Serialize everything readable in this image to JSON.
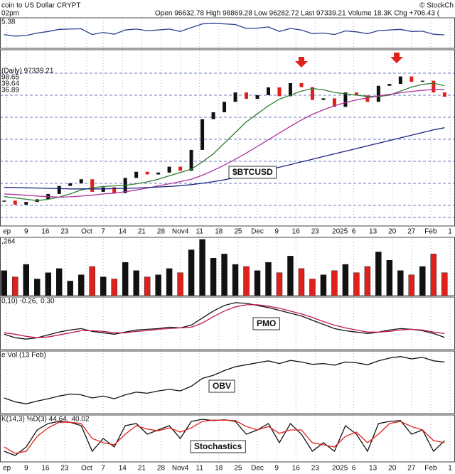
{
  "chart_data": {
    "type": "stock",
    "title": "coin to US Dollar CRYPT",
    "subtitle": "02pm",
    "quote": "Open 96632.78 High 98869.28 Low 96282.72 Last 97339.21 Volume 18.3K Chg +706.43 (",
    "credit": "© StockCh",
    "x": [
      0,
      4,
      8,
      12,
      16,
      20,
      24,
      28,
      32,
      36,
      40,
      44,
      48,
      52,
      56,
      60,
      64,
      68,
      72,
      76,
      80,
      84,
      88,
      92,
      96,
      100,
      104,
      108,
      112,
      116,
      120,
      124,
      128,
      132,
      136,
      140,
      144,
      148,
      152,
      156,
      160
    ],
    "xlim": [
      -1.5,
      163.8
    ],
    "xticks": [
      {
        "value": 1,
        "label": "ep"
      },
      {
        "value": 8,
        "label": "9"
      },
      {
        "value": 15,
        "label": "16"
      },
      {
        "value": 22,
        "label": "23"
      },
      {
        "value": 30,
        "label": "Oct"
      },
      {
        "value": 36,
        "label": "7"
      },
      {
        "value": 43,
        "label": "14"
      },
      {
        "value": 50,
        "label": "21"
      },
      {
        "value": 57,
        "label": "28"
      },
      {
        "value": 64,
        "label": "Nov4"
      },
      {
        "value": 71,
        "label": "11"
      },
      {
        "value": 78,
        "label": "18"
      },
      {
        "value": 85,
        "label": "25"
      },
      {
        "value": 92,
        "label": "Dec"
      },
      {
        "value": 99,
        "label": "9"
      },
      {
        "value": 106,
        "label": "16"
      },
      {
        "value": 113,
        "label": "23"
      },
      {
        "value": 122,
        "label": "2025"
      },
      {
        "value": 127,
        "label": "6"
      },
      {
        "value": 134,
        "label": "13"
      },
      {
        "value": 141,
        "label": "20"
      },
      {
        "value": 148,
        "label": "27"
      },
      {
        "value": 155,
        "label": "Feb"
      },
      {
        "value": 162,
        "label": "1"
      }
    ],
    "panels": [
      {
        "type": "line",
        "ylim": [
          0,
          100
        ],
        "labels": [
          {
            "text": "5.38",
            "color": "#111"
          }
        ],
        "series": [
          {
            "color": "#2a3f8f",
            "values": [
              45,
              40,
              42,
              50,
              55,
              62,
              63,
              64,
              45,
              52,
              46,
              60,
              63,
              58,
              60,
              63,
              55,
              68,
              80,
              82,
              80,
              78,
              65,
              66,
              70,
              55,
              65,
              60,
              48,
              50,
              45,
              57,
              54,
              48,
              58,
              60,
              62,
              55,
              56,
              46,
              44
            ]
          }
        ]
      },
      {
        "type": "candle",
        "ylim": [
          48000,
          114000
        ],
        "up_color": "#111",
        "down_color": "#e0201b",
        "tag": "$BTCUSD",
        "labels": [
          {
            "text": "(Daily) 97339.21",
            "color": "#111"
          },
          {
            "text": "98.65",
            "color": "#2e7d32"
          },
          {
            "text": "39.64",
            "color": "#b0309a"
          },
          {
            "text": "36.89",
            "color": "#1a237e"
          }
        ],
        "series": [
          {
            "color": "#111",
            "values": [
              57500,
              56000,
              57000,
              58000,
              60000,
              63000,
              64000,
              65500,
              60800,
              62500,
              60300,
              66000,
              68300,
              67300,
              68000,
              70200,
              68700,
              76500,
              88000,
              90600,
              94500,
              98000,
              95600,
              97000,
              99900,
              96600,
              101500,
              100000,
              95200,
              95800,
              92600,
              98000,
              96900,
              94500,
              100500,
              101200,
              104000,
              102000,
              102400,
              98000,
              96400
            ]
          },
          {
            "color": "#2e7d32",
            "values": [
              59000,
              58500,
              58000,
              57500,
              58000,
              58800,
              60000,
              61500,
              62300,
              62800,
              63000,
              63200,
              63800,
              64500,
              65500,
              66800,
              68000,
              69300,
              72000,
              75000,
              79000,
              83000,
              87000,
              90000,
              93000,
              95500,
              97000,
              98500,
              99500,
              99000,
              98000,
              97500,
              97000,
              96500,
              96500,
              97000,
              98500,
              100000,
              101000,
              101500,
              100500
            ]
          },
          {
            "color": "#b0309a",
            "values": [
              60000,
              59800,
              59500,
              59200,
              59000,
              58800,
              58900,
              59200,
              59500,
              60000,
              60300,
              60800,
              61500,
              62200,
              63000,
              63800,
              64600,
              65500,
              67000,
              68800,
              70800,
              73000,
              75300,
              77800,
              80300,
              82800,
              85300,
              87700,
              89800,
              91500,
              93000,
              94200,
              95200,
              96000,
              96700,
              97300,
              97900,
              98400,
              98800,
              99100,
              99200
            ]
          },
          {
            "color": "#1a237e",
            "values": [
              62500,
              62400,
              62300,
              62200,
              62100,
              62000,
              61900,
              61900,
              61900,
              61900,
              62000,
              62100,
              62200,
              62400,
              62600,
              62800,
              63100,
              63500,
              64000,
              64600,
              65300,
              66100,
              67000,
              68000,
              69000,
              70000,
              71000,
              72000,
              73000,
              74000,
              75000,
              76000,
              77000,
              78000,
              79000,
              80000,
              81000,
              82000,
              83000,
              84000,
              84800
            ]
          }
        ]
      },
      {
        "type": "volume",
        "ylim": [
          0,
          28000
        ],
        "labels": [
          {
            "text": ",264",
            "color": "#111"
          }
        ],
        "series": [
          {
            "color": "#e0201b",
            "values": [
              12000,
              9000,
              15000,
              8000,
              11000,
              13000,
              7000,
              10000,
              14000,
              9000,
              8000,
              16000,
              12000,
              9000,
              10000,
              13000,
              11000,
              22000,
              27000,
              18000,
              20000,
              15000,
              14000,
              12000,
              16000,
              11000,
              19000,
              13000,
              8000,
              10000,
              12000,
              15000,
              11000,
              14000,
              21000,
              17000,
              12000,
              10000,
              14000,
              20000,
              11000
            ]
          }
        ]
      },
      {
        "type": "line",
        "ylim": [
          -2,
          5.5
        ],
        "tag": "PMO",
        "labels": [
          {
            "text": "0,10) -0.26,",
            "color": "#111"
          },
          {
            "text": "0.30",
            "color": "#e0201b"
          }
        ],
        "series": [
          {
            "color": "#111",
            "values": [
              0.2,
              -0.3,
              -0.5,
              -0.3,
              0.1,
              0.5,
              0.8,
              1.0,
              0.6,
              0.4,
              0.2,
              0.5,
              0.8,
              0.9,
              1.0,
              1.2,
              1.1,
              1.5,
              2.5,
              3.5,
              4.3,
              4.7,
              4.6,
              4.3,
              4.0,
              3.6,
              3.2,
              2.8,
              2.2,
              1.6,
              1.0,
              0.7,
              0.5,
              0.3,
              0.5,
              0.8,
              1.0,
              0.9,
              0.7,
              0.3,
              -0.26
            ]
          },
          {
            "color": "#c2185b",
            "values": [
              0.4,
              0.2,
              -0.1,
              -0.3,
              -0.2,
              0.1,
              0.4,
              0.7,
              0.7,
              0.6,
              0.4,
              0.4,
              0.6,
              0.7,
              0.9,
              1.0,
              1.1,
              1.2,
              1.8,
              2.7,
              3.5,
              4.1,
              4.4,
              4.4,
              4.2,
              3.9,
              3.5,
              3.1,
              2.6,
              2.0,
              1.5,
              1.1,
              0.8,
              0.5,
              0.5,
              0.6,
              0.8,
              0.9,
              0.8,
              0.5,
              0.3
            ]
          }
        ]
      },
      {
        "type": "line",
        "ylim": [
          80,
          240
        ],
        "tag": "OBV",
        "labels": [
          {
            "text": "e Vol (13 Feb)",
            "color": "#111"
          }
        ],
        "series": [
          {
            "color": "#111",
            "values": [
              120,
              110,
              105,
              112,
              118,
              125,
              130,
              128,
              120,
              125,
              118,
              128,
              135,
              132,
              138,
              142,
              138,
              150,
              170,
              178,
              190,
              200,
              205,
              210,
              215,
              208,
              216,
              212,
              206,
              208,
              204,
              212,
              210,
              205,
              215,
              222,
              226,
              220,
              224,
              215,
              212
            ]
          }
        ]
      },
      {
        "type": "line",
        "ylim": [
          -5,
          105
        ],
        "tag": "Stochastics",
        "labels": [
          {
            "text": "K(14,3) %D(3) 44.64,",
            "color": "#111"
          },
          {
            "text": "40.02",
            "color": "#e0201b"
          }
        ],
        "series": [
          {
            "color": "#111",
            "values": [
              20,
              10,
              30,
              70,
              85,
              90,
              88,
              80,
              20,
              50,
              30,
              80,
              85,
              60,
              70,
              80,
              50,
              90,
              95,
              92,
              94,
              90,
              60,
              70,
              85,
              40,
              85,
              60,
              20,
              40,
              20,
              80,
              60,
              20,
              85,
              90,
              92,
              60,
              70,
              20,
              44.64
            ]
          },
          {
            "color": "#e0201b",
            "values": [
              30,
              15,
              20,
              55,
              75,
              88,
              88,
              85,
              50,
              40,
              35,
              60,
              80,
              72,
              68,
              75,
              65,
              75,
              90,
              93,
              93,
              92,
              78,
              70,
              78,
              62,
              70,
              70,
              40,
              35,
              30,
              55,
              65,
              40,
              60,
              85,
              90,
              78,
              70,
              45,
              40.02
            ]
          }
        ]
      }
    ]
  }
}
